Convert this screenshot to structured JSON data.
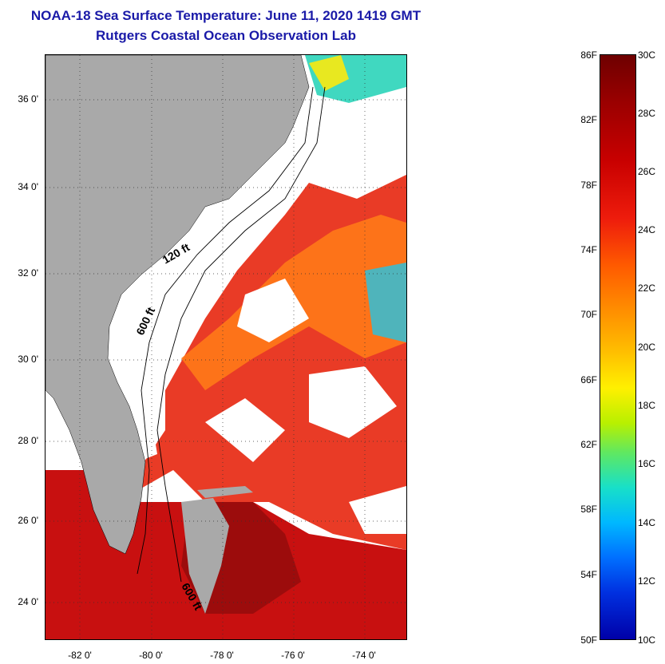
{
  "title": {
    "line1": "NOAA-18 Sea Surface Temperature:  June 11, 2020 1419 GMT",
    "line2": "Rutgers Coastal Ocean Observation Lab"
  },
  "map": {
    "latitude_labels": [
      "36 0'",
      "34 0'",
      "32 0'",
      "30 0'",
      "28 0'",
      "26 0'",
      "24 0'"
    ],
    "longitude_labels": [
      "-82 0'",
      "-80 0'",
      "-78 0'",
      "-76 0'",
      "-74 0'"
    ],
    "contour_labels": [
      "120 ft",
      "600 ft",
      "600 ft"
    ],
    "colors": {
      "land": "#a9a9a9",
      "cloud_mask": "#ffffff",
      "warm": "#e02010",
      "hot": "#9c0c0c",
      "orange": "#ff7a10",
      "cool": "#30d8c8"
    }
  },
  "colorbar": {
    "fahrenheit_labels": [
      "86F",
      "82F",
      "78F",
      "74F",
      "70F",
      "66F",
      "62F",
      "58F",
      "54F",
      "50F"
    ],
    "celsius_labels": [
      "30C",
      "28C",
      "26C",
      "24C",
      "22C",
      "20C",
      "18C",
      "16C",
      "14C",
      "12C",
      "10C"
    ],
    "colormap": "jet"
  }
}
